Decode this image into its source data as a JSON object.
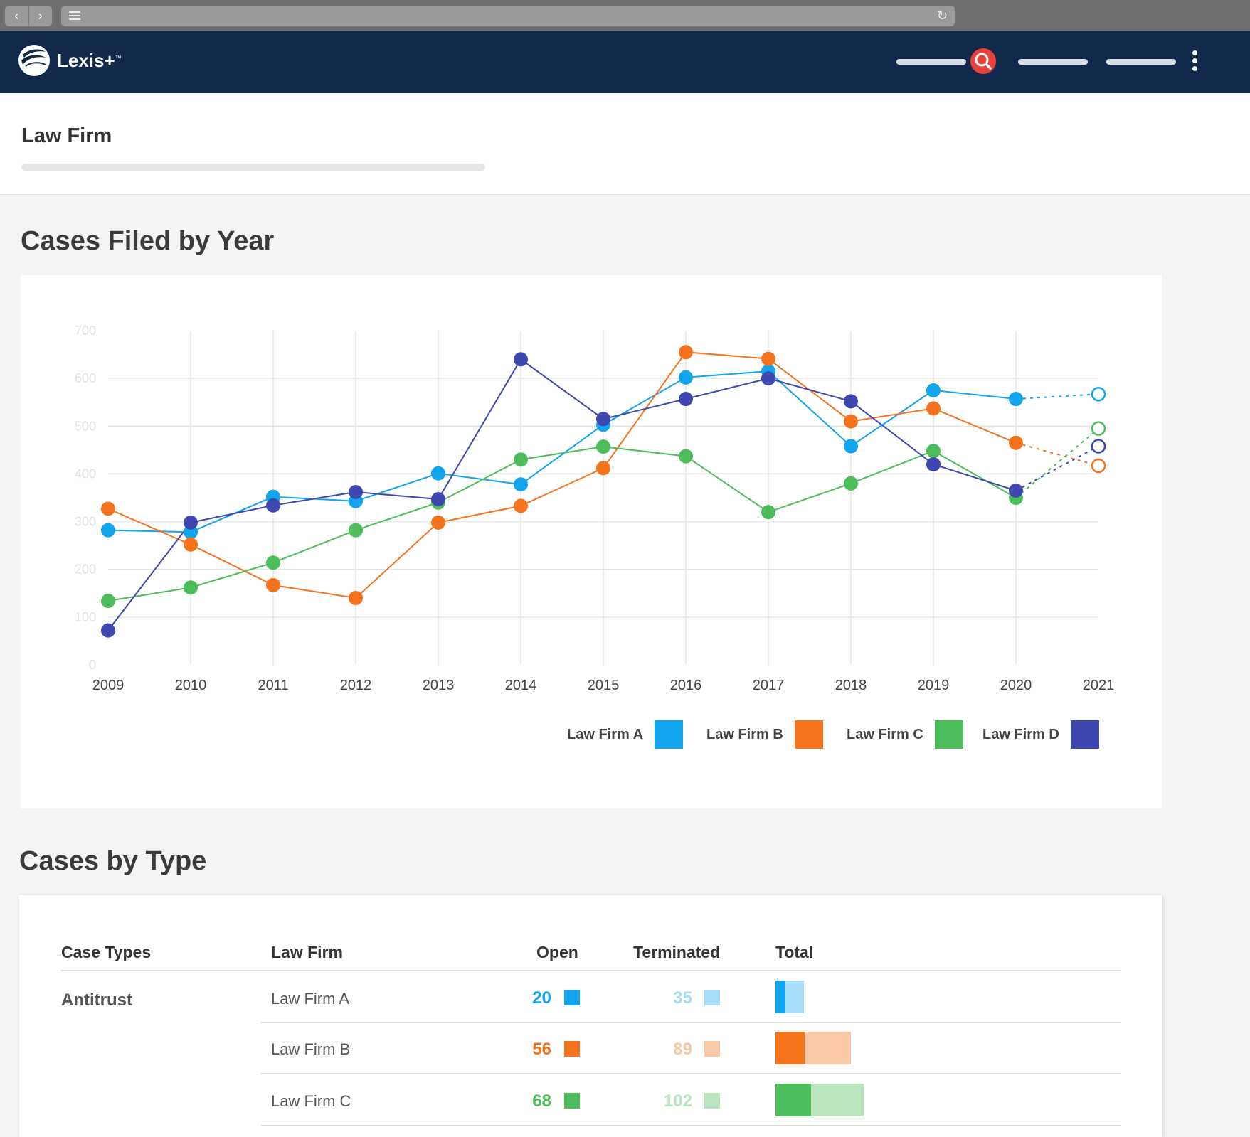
{
  "header": {
    "brand": "Lexis+",
    "trademark": "™"
  },
  "page": {
    "title": "Law Firm"
  },
  "sections": {
    "chart_title": "Cases Filed by Year",
    "table_title": "Cases by Type"
  },
  "colors": {
    "firm_a": "#12a4ec",
    "firm_b": "#f6731e",
    "firm_c": "#4cbd5a",
    "firm_d": "#3f47b0",
    "header_bg": "#13294b",
    "search": "#e8413c"
  },
  "chart_data": {
    "type": "line",
    "x": [
      "2009",
      "2010",
      "2011",
      "2012",
      "2013",
      "2014",
      "2015",
      "2016",
      "2017",
      "2018",
      "2019",
      "2020",
      "2021"
    ],
    "y_ticks": [
      "0",
      "100",
      "200",
      "300",
      "400",
      "500",
      "600",
      "700"
    ],
    "ylim": [
      0,
      700
    ],
    "grid": true,
    "legend_position": "bottom-right",
    "projected_point": "2021",
    "series": [
      {
        "name": "Law Firm A",
        "color": "#12a4ec",
        "values": [
          282,
          278,
          352,
          343,
          401,
          378,
          503,
          602,
          615,
          458,
          575,
          557,
          567
        ]
      },
      {
        "name": "Law Firm B",
        "color": "#f6731e",
        "values": [
          327,
          252,
          167,
          140,
          298,
          333,
          412,
          655,
          641,
          510,
          537,
          465,
          417
        ]
      },
      {
        "name": "Law Firm C",
        "color": "#4cbd5a",
        "values": [
          134,
          162,
          214,
          282,
          340,
          430,
          457,
          437,
          320,
          380,
          448,
          350,
          495
        ]
      },
      {
        "name": "Law Firm D",
        "color": "#3f47b0",
        "values": [
          72,
          298,
          334,
          362,
          347,
          640,
          515,
          557,
          600,
          552,
          420,
          365,
          458
        ]
      }
    ]
  },
  "table": {
    "headers": {
      "case_types": "Case Types",
      "law_firm": "Law Firm",
      "open": "Open",
      "terminated": "Terminated",
      "total": "Total"
    },
    "case_type": "Antitrust",
    "rows": [
      {
        "firm": "Law Firm A",
        "open": "20",
        "terminated": "35",
        "color": "#12a4ec",
        "light": "#a6dcf8"
      },
      {
        "firm": "Law Firm B",
        "open": "56",
        "terminated": "89",
        "color": "#f6731e",
        "light": "#f9c8a6"
      },
      {
        "firm": "Law Firm C",
        "open": "68",
        "terminated": "102",
        "color": "#4cbd5a",
        "light": "#b8e4be"
      }
    ]
  }
}
